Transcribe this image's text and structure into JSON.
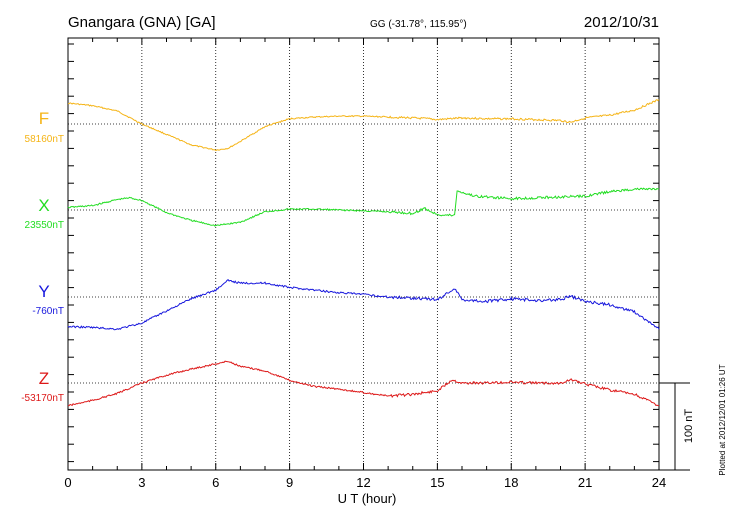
{
  "header": {
    "station": "Gnangara (GNA)  [GA]",
    "coords": "GG (-31.78°, 115.95°)",
    "date": "2012/10/31"
  },
  "footer": {
    "plotted": "Plotted at 2012/12/01 01:26 UT"
  },
  "chart_data": {
    "type": "line",
    "xlabel": "U T (hour)",
    "xlim": [
      0,
      24
    ],
    "x_ticks": [
      "0",
      "3",
      "6",
      "9",
      "12",
      "15",
      "18",
      "21",
      "24"
    ],
    "grid": true,
    "scale_bar": {
      "label": "100 nT",
      "nT": 100
    },
    "series": [
      {
        "name": "F",
        "baseline_label": "58160nT",
        "color": "#f5b416",
        "x": [
          0,
          1,
          2,
          3,
          4,
          5,
          6,
          6.5,
          7,
          8,
          9,
          10,
          11,
          12,
          13,
          14,
          14.6,
          15,
          16,
          17,
          18,
          19,
          20,
          20.4,
          21,
          22,
          23,
          23.5,
          24
        ],
        "values": [
          24,
          21,
          15,
          0,
          -12,
          -24,
          -30,
          -28,
          -20,
          -3,
          6,
          8,
          9,
          9,
          8,
          7,
          6,
          5,
          7,
          6,
          6,
          5,
          4,
          2,
          7,
          10,
          16,
          22,
          28
        ]
      },
      {
        "name": "X",
        "baseline_label": "23550nT",
        "color": "#22dd22",
        "x": [
          0,
          1,
          2,
          2.5,
          3,
          4,
          5,
          6,
          7,
          8,
          9,
          10,
          11,
          12,
          13,
          14,
          14.5,
          14.8,
          15.2,
          15.7,
          15.8,
          16.5,
          17.5,
          18,
          19,
          20,
          21,
          22,
          23,
          24
        ],
        "values": [
          3,
          5,
          12,
          14,
          11,
          -3,
          -12,
          -18,
          -14,
          -2,
          1,
          1,
          0,
          -1,
          -2,
          -4,
          2,
          -3,
          -6,
          -6,
          22,
          16,
          14,
          13,
          14,
          15,
          16,
          21,
          24,
          24
        ]
      },
      {
        "name": "Y",
        "baseline_label": "-760nT",
        "color": "#1818dd",
        "x": [
          0,
          1,
          2,
          3,
          4,
          5,
          6,
          6.5,
          7,
          8,
          9,
          10,
          11,
          12,
          13,
          14,
          15,
          15.7,
          16,
          17,
          18,
          19,
          20,
          20.4,
          21,
          22,
          23,
          24
        ],
        "values": [
          -34,
          -35,
          -37,
          -30,
          -16,
          -2,
          8,
          19,
          16,
          16,
          11,
          8,
          5,
          3,
          0,
          -1,
          -3,
          10,
          -3,
          -5,
          -2,
          -4,
          -3,
          1,
          -5,
          -9,
          -17,
          -37
        ]
      },
      {
        "name": "Z",
        "baseline_label": "-53170nT",
        "color": "#dd1818",
        "x": [
          0,
          1,
          2,
          3,
          4,
          5,
          6,
          6.5,
          7,
          8,
          9,
          10,
          11,
          12,
          13,
          14,
          15,
          15.6,
          16,
          17,
          18,
          19,
          20,
          20.4,
          21,
          22,
          23,
          24
        ],
        "values": [
          -26,
          -20,
          -12,
          0,
          9,
          16,
          22,
          25,
          19,
          14,
          3,
          -4,
          -7,
          -11,
          -15,
          -13,
          -9,
          4,
          0,
          0,
          1,
          0,
          0,
          4,
          -1,
          -8,
          -13,
          -26
        ]
      }
    ]
  }
}
